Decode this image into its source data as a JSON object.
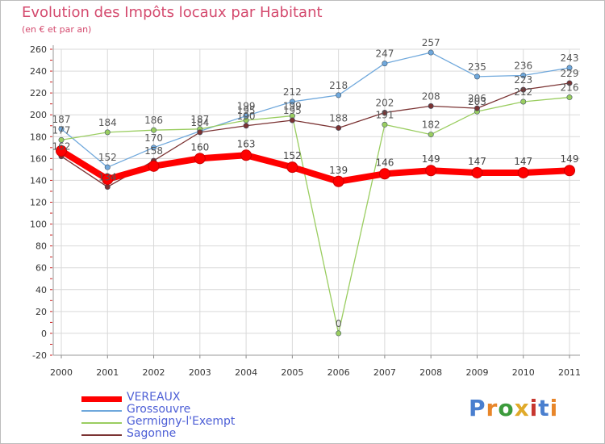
{
  "chart_data": {
    "type": "line",
    "title": "Evolution des Impôts locaux par Habitant",
    "subtitle": "(en € et par an)",
    "xlabel": "",
    "ylabel": "",
    "ylim": [
      -20,
      260
    ],
    "yticks": [
      -20,
      0,
      20,
      40,
      60,
      80,
      100,
      120,
      140,
      160,
      180,
      200,
      220,
      240,
      260
    ],
    "x": [
      "2000",
      "2001",
      "2002",
      "2003",
      "2004",
      "2005",
      "2006",
      "2007",
      "2008",
      "2009",
      "2010",
      "2011"
    ],
    "grid": true,
    "legend_position": "bottom-left",
    "series": [
      {
        "name": "VEREAUX",
        "color": "#ff0000",
        "values": [
          167,
          141,
          153,
          160,
          163,
          152,
          139,
          146,
          149,
          147,
          147,
          149
        ],
        "labels": [
          "",
          "",
          "",
          "160",
          "163",
          "152",
          "139",
          "146",
          "149",
          "147",
          "147",
          "149"
        ]
      },
      {
        "name": "Grossouvre",
        "color": "#6fa8dc",
        "values": [
          187,
          152,
          170,
          185,
          199,
          212,
          218,
          247,
          257,
          235,
          236,
          243
        ],
        "labels": [
          "187",
          "152",
          "170",
          "",
          "199",
          "212",
          "218",
          "247",
          "257",
          "235",
          "236",
          "243"
        ]
      },
      {
        "name": "Germigny-l'Exempt",
        "color": "#9acd60",
        "values": [
          177,
          184,
          186,
          187,
          195,
          199,
          0,
          191,
          182,
          203,
          212,
          216
        ],
        "labels": [
          "177",
          "184",
          "186",
          "187",
          "195",
          "199",
          "0",
          "191",
          "182",
          "203",
          "212",
          "216"
        ]
      },
      {
        "name": "Sagonne",
        "color": "#7b3333",
        "values": [
          162,
          134,
          158,
          184,
          190,
          195,
          188,
          202,
          208,
          206,
          223,
          229
        ],
        "labels": [
          "162",
          "134",
          "158",
          "184",
          "190",
          "195",
          "188",
          "202",
          "208",
          "206",
          "223",
          "229"
        ]
      }
    ]
  },
  "logo": {
    "text": "Proxiti"
  }
}
